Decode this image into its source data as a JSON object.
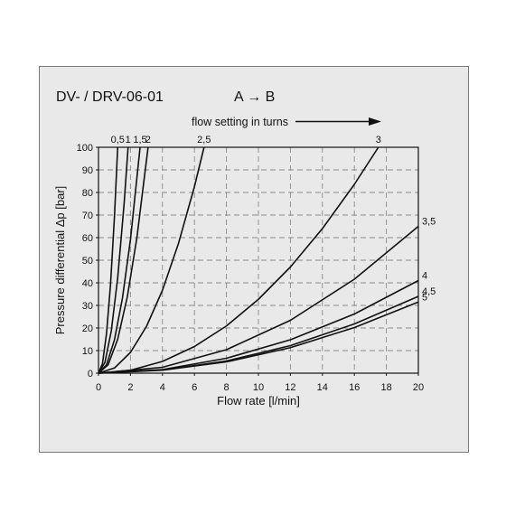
{
  "chart_data": {
    "type": "line",
    "title": "DV- / DRV-06-01",
    "subtitle": "A → B",
    "setting_axis_label": "flow setting in turns",
    "xlabel": "Flow rate [l/min]",
    "ylabel": "Pressure differential Δp [bar]",
    "xlim": [
      0,
      20
    ],
    "ylim": [
      0,
      100
    ],
    "xticks": [
      0,
      2,
      4,
      6,
      8,
      10,
      12,
      14,
      16,
      18,
      20
    ],
    "yticks": [
      0,
      10,
      20,
      30,
      40,
      50,
      60,
      70,
      80,
      90,
      100
    ],
    "grid": "dashed",
    "series": [
      {
        "name": "0,5",
        "label_pos": "top",
        "x": [
          0,
          0.25,
          0.5,
          0.75,
          1.0,
          1.2
        ],
        "y": [
          0,
          4.3,
          17.4,
          39.1,
          69.4,
          100
        ]
      },
      {
        "name": "1",
        "label_pos": "top",
        "x": [
          0,
          0.4,
          0.8,
          1.2,
          1.6,
          1.85
        ],
        "y": [
          0,
          4.7,
          18.7,
          42.1,
          74.8,
          100
        ]
      },
      {
        "name": "1,5",
        "label_pos": "top",
        "x": [
          0,
          0.5,
          1.0,
          1.5,
          2.0,
          2.6
        ],
        "y": [
          0,
          3.7,
          14.8,
          33.3,
          59.2,
          100
        ]
      },
      {
        "name": "2",
        "label_pos": "top",
        "x": [
          0,
          0.6,
          1.2,
          1.8,
          2.4,
          3.1
        ],
        "y": [
          0,
          3.7,
          15.0,
          33.7,
          59.9,
          100
        ]
      },
      {
        "name": "2,5",
        "label_pos": "top",
        "x": [
          0,
          1,
          2,
          3,
          4,
          5,
          6,
          6.6
        ],
        "y": [
          0,
          2.3,
          9.2,
          20.7,
          36.7,
          57.4,
          82.6,
          100
        ]
      },
      {
        "name": "3",
        "label_pos": "top",
        "x": [
          0,
          2,
          4,
          6,
          8,
          10,
          12,
          14,
          16,
          17.5
        ],
        "y": [
          0,
          1.3,
          5.2,
          11.8,
          20.9,
          32.7,
          47.0,
          64.0,
          83.6,
          100
        ]
      },
      {
        "name": "3,5",
        "label_pos": "right",
        "x": [
          0,
          4,
          8,
          12,
          16,
          20
        ],
        "y": [
          0,
          2.6,
          10.4,
          23.4,
          41.6,
          65
        ]
      },
      {
        "name": "4",
        "label_pos": "right",
        "x": [
          0,
          4,
          8,
          12,
          16,
          20
        ],
        "y": [
          0,
          1.6,
          6.6,
          14.8,
          26.2,
          41
        ]
      },
      {
        "name": "4,5",
        "label_pos": "right",
        "x": [
          0,
          4,
          8,
          12,
          16,
          20
        ],
        "y": [
          0,
          1.4,
          5.4,
          12.2,
          21.8,
          34
        ]
      },
      {
        "name": "5",
        "label_pos": "right",
        "x": [
          0,
          4,
          8,
          12,
          16,
          20
        ],
        "y": [
          0,
          1.3,
          5.0,
          11.3,
          20.2,
          31.5
        ]
      }
    ]
  }
}
